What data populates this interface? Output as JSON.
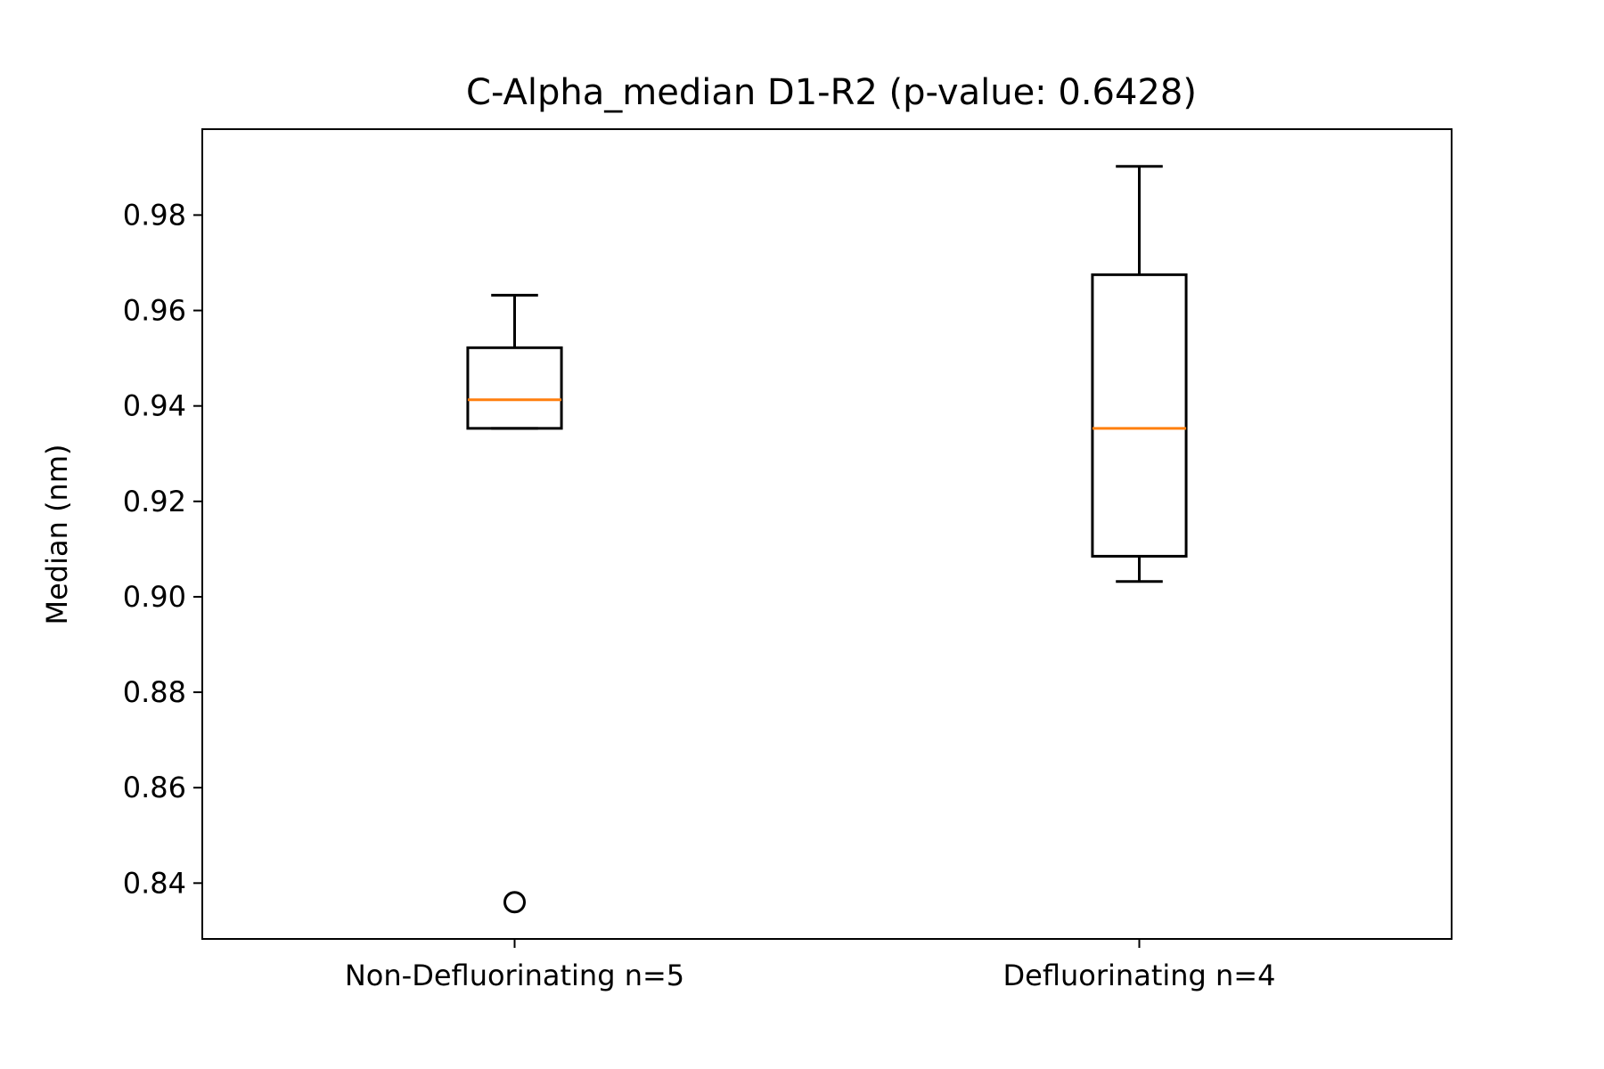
{
  "chart_data": {
    "type": "boxplot",
    "title": "C-Alpha_median D1-R2 (p-value: 0.6428)",
    "xlabel": "",
    "ylabel": "Median (nm)",
    "ylim": [
      0.8283,
      0.998
    ],
    "grid": false,
    "legend": "none",
    "yticks": [
      {
        "value": 0.84,
        "label": "0.84"
      },
      {
        "value": 0.86,
        "label": "0.86"
      },
      {
        "value": 0.88,
        "label": "0.88"
      },
      {
        "value": 0.9,
        "label": "0.90"
      },
      {
        "value": 0.92,
        "label": "0.92"
      },
      {
        "value": 0.94,
        "label": "0.94"
      },
      {
        "value": 0.96,
        "label": "0.96"
      },
      {
        "value": 0.98,
        "label": "0.98"
      }
    ],
    "categories": [
      "Non-Defluorinating n=5",
      "Defluorinating n=4"
    ],
    "boxes": [
      {
        "whisker_low": 0.9353,
        "q1": 0.9353,
        "median": 0.9413,
        "q3": 0.9522,
        "whisker_high": 0.9632,
        "outliers": [
          0.836
        ]
      },
      {
        "whisker_low": 0.9032,
        "q1": 0.9085,
        "median": 0.9353,
        "q3": 0.9675,
        "whisker_high": 0.9902,
        "outliers": []
      }
    ],
    "colors": {
      "box": "#000000",
      "median": "#ff7f0e",
      "axes": "#000000"
    }
  }
}
